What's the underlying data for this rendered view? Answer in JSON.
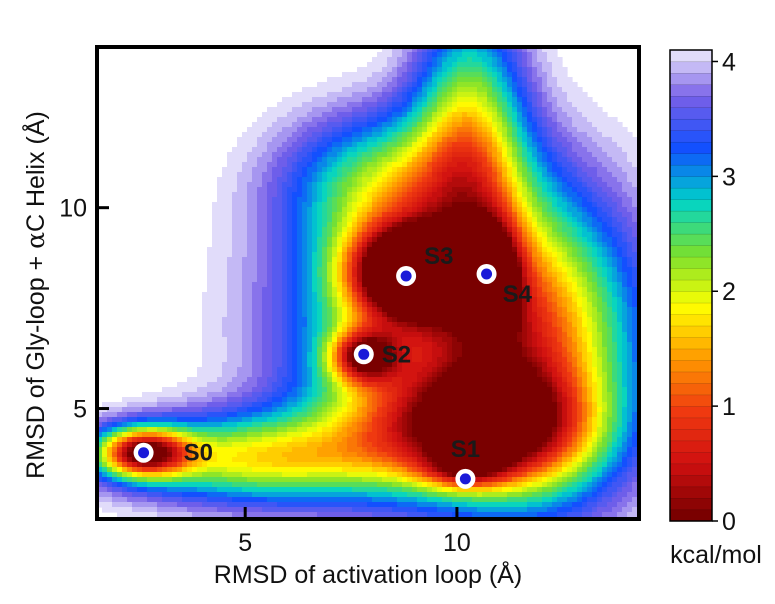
{
  "chart_data": {
    "type": "heatmap",
    "xlabel": "RMSD of activation loop (Å)",
    "ylabel_prefix": "RMSD of Gly-loop + ",
    "ylabel_greek": "α",
    "ylabel_suffix": "C Helix (Å)",
    "xlim": [
      1.5,
      14.3
    ],
    "ylim": [
      2.25,
      14.0
    ],
    "x_ticks": [
      5,
      10
    ],
    "x_tick_labels": [
      "5",
      "10"
    ],
    "y_ticks": [
      5,
      10
    ],
    "y_tick_labels": [
      "5",
      "10"
    ],
    "colorbar": {
      "range": [
        0,
        4.1
      ],
      "ticks": [
        0,
        1,
        2,
        3,
        4
      ],
      "tick_labels": [
        "0",
        "1",
        "2",
        "3",
        "4"
      ],
      "unit_label": "kcal/mol",
      "levels": 41
    },
    "colormap": [
      "#7a0000",
      "#d01010",
      "#f03a10",
      "#ff9a00",
      "#ffff00",
      "#78e030",
      "#00d4c8",
      "#1050ff",
      "#7860e8",
      "#ffffff"
    ],
    "states": [
      {
        "name": "S0",
        "x": 2.6,
        "y": 3.9
      },
      {
        "name": "S1",
        "x": 10.2,
        "y": 3.25
      },
      {
        "name": "S2",
        "x": 7.8,
        "y": 6.35
      },
      {
        "name": "S3",
        "x": 8.8,
        "y": 8.3
      },
      {
        "name": "S4",
        "x": 10.7,
        "y": 8.35
      }
    ],
    "landscape_basins": [
      {
        "x": 2.6,
        "y": 3.9,
        "sx": 0.75,
        "sy": 0.42,
        "depth": 3.6
      },
      {
        "x": 5.2,
        "y": 3.75,
        "sx": 2.2,
        "sy": 0.75,
        "depth": 2.3
      },
      {
        "x": 10.2,
        "y": 3.5,
        "sx": 0.7,
        "sy": 0.35,
        "depth": 1.45
      },
      {
        "x": 9.6,
        "y": 4.5,
        "sx": 1.8,
        "sy": 1.05,
        "depth": 2.1
      },
      {
        "x": 8.8,
        "y": 8.4,
        "sx": 0.95,
        "sy": 0.8,
        "depth": 3.9
      },
      {
        "x": 7.8,
        "y": 6.3,
        "sx": 0.55,
        "sy": 0.45,
        "depth": 2.55
      },
      {
        "x": 10.8,
        "y": 8.3,
        "sx": 0.45,
        "sy": 0.9,
        "depth": 2.5
      },
      {
        "x": 9.5,
        "y": 7.1,
        "sx": 2.3,
        "sy": 2.3,
        "depth": 2.6
      },
      {
        "x": 10.3,
        "y": 11.8,
        "sx": 0.9,
        "sy": 2.2,
        "depth": 2.1
      },
      {
        "x": 12.0,
        "y": 6.5,
        "sx": 1.6,
        "sy": 2.6,
        "depth": 2.0
      },
      {
        "x": 8.5,
        "y": 10.6,
        "sx": 1.7,
        "sy": 1.2,
        "depth": 1.6
      },
      {
        "x": 11.5,
        "y": 4.4,
        "sx": 1.4,
        "sy": 1.0,
        "depth": 1.6
      }
    ]
  }
}
